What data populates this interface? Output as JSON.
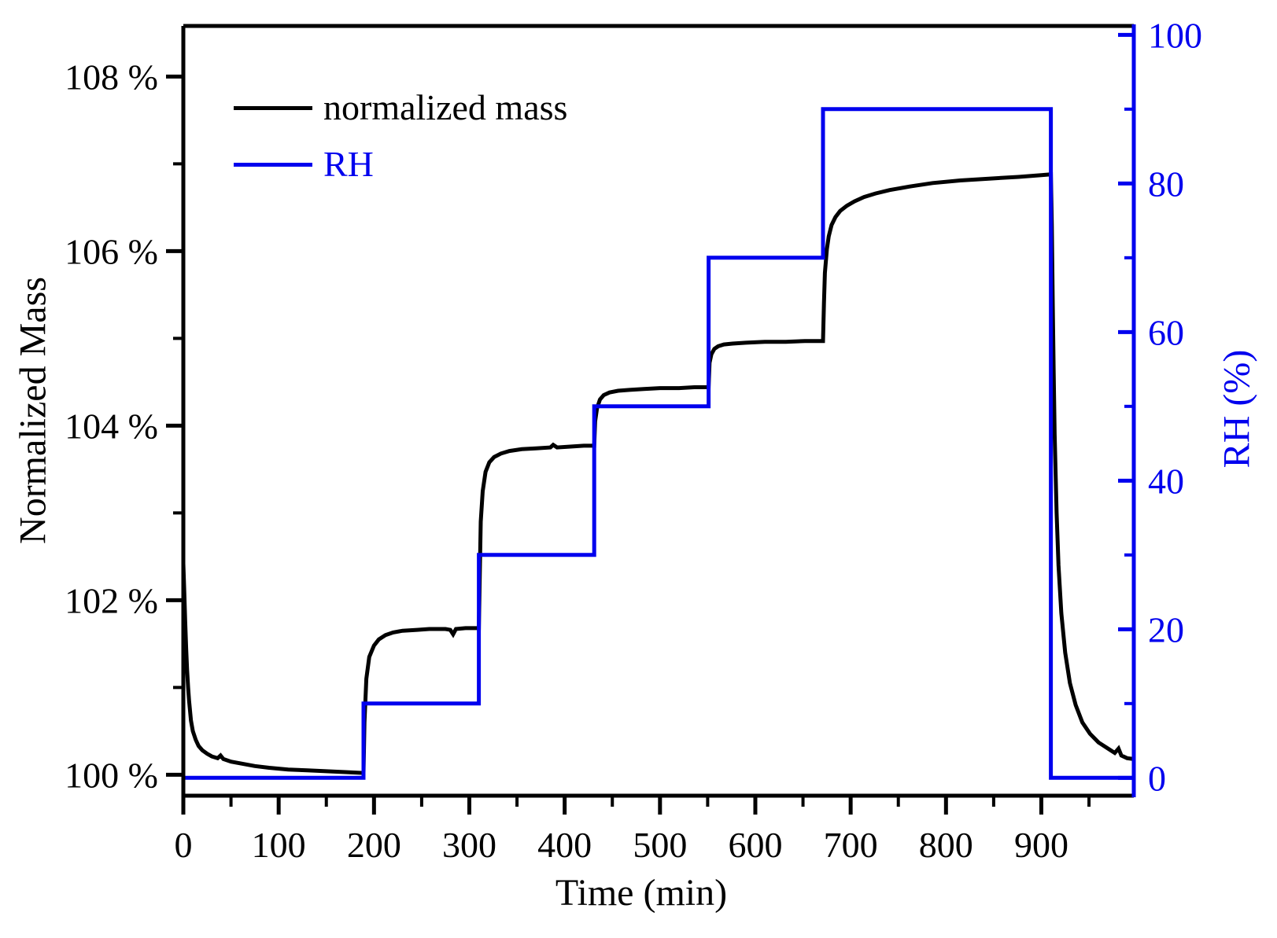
{
  "chart_data": {
    "type": "line",
    "title": "",
    "xlabel": "Time (min)",
    "ylabel_left": "Normalized Mass",
    "ylabel_right": "RH (%)",
    "colors": {
      "mass": "#000000",
      "rh": "#0000ee",
      "frame": "#000000"
    },
    "x_axis": {
      "min": 0,
      "max": 997,
      "major_ticks": [
        0,
        100,
        200,
        300,
        400,
        500,
        600,
        700,
        800,
        900
      ],
      "tick_labels": [
        "0",
        "100",
        "200",
        "300",
        "400",
        "500",
        "600",
        "700",
        "800",
        "900"
      ],
      "minor_ticks": [
        50,
        150,
        250,
        350,
        450,
        550,
        650,
        750,
        850,
        950
      ]
    },
    "y_left": {
      "min": 99.76,
      "max": 108.58,
      "major_ticks": [
        100,
        102,
        104,
        106,
        108
      ],
      "tick_labels": [
        "100 %",
        "102 %",
        "104 %",
        "106 %",
        "108 %"
      ],
      "minor_ticks": [
        101,
        103,
        105,
        107
      ]
    },
    "y_right": {
      "min": -2.4,
      "max": 101.2,
      "major_ticks": [
        0,
        20,
        40,
        60,
        80,
        100
      ],
      "tick_labels": [
        "0",
        "20",
        "40",
        "60",
        "80",
        "100"
      ],
      "minor_ticks": [
        10,
        30,
        50,
        70,
        90
      ]
    },
    "legend": [
      {
        "label": "normalized mass",
        "color": "#000000"
      },
      {
        "label": "RH",
        "color": "#0000ee"
      }
    ],
    "rh_program_steps": [
      {
        "start_min": 0,
        "end_min": 189,
        "rh_percent": 0
      },
      {
        "start_min": 189,
        "end_min": 310,
        "rh_percent": 10
      },
      {
        "start_min": 310,
        "end_min": 431,
        "rh_percent": 30
      },
      {
        "start_min": 431,
        "end_min": 551,
        "rh_percent": 50
      },
      {
        "start_min": 551,
        "end_min": 671,
        "rh_percent": 70
      },
      {
        "start_min": 671,
        "end_min": 910,
        "rh_percent": 90
      },
      {
        "start_min": 910,
        "end_min": 997,
        "rh_percent": 0
      }
    ],
    "mass_plateaus_percent": {
      "rh0": 100.0,
      "rh10": 101.68,
      "rh30": 103.77,
      "rh50": 104.44,
      "rh70": 104.97,
      "rh90": 106.88,
      "final": 100.18
    },
    "series": [
      {
        "name": "normalized mass",
        "axis": "left",
        "width": 5,
        "points": [
          [
            0,
            102.42
          ],
          [
            1,
            102.1
          ],
          [
            2,
            101.75
          ],
          [
            3,
            101.45
          ],
          [
            4,
            101.2
          ],
          [
            5,
            101.0
          ],
          [
            6,
            100.85
          ],
          [
            8,
            100.62
          ],
          [
            10,
            100.5
          ],
          [
            13,
            100.4
          ],
          [
            16,
            100.33
          ],
          [
            20,
            100.28
          ],
          [
            25,
            100.24
          ],
          [
            30,
            100.21
          ],
          [
            36,
            100.19
          ],
          [
            39,
            100.22
          ],
          [
            42,
            100.18
          ],
          [
            50,
            100.15
          ],
          [
            60,
            100.13
          ],
          [
            75,
            100.1
          ],
          [
            90,
            100.08
          ],
          [
            110,
            100.06
          ],
          [
            130,
            100.05
          ],
          [
            150,
            100.04
          ],
          [
            170,
            100.03
          ],
          [
            189,
            100.02
          ],
          [
            190,
            100.6
          ],
          [
            192,
            101.1
          ],
          [
            195,
            101.35
          ],
          [
            200,
            101.48
          ],
          [
            205,
            101.55
          ],
          [
            212,
            101.6
          ],
          [
            220,
            101.63
          ],
          [
            230,
            101.65
          ],
          [
            245,
            101.66
          ],
          [
            258,
            101.67
          ],
          [
            275,
            101.67
          ],
          [
            280,
            101.66
          ],
          [
            283,
            101.61
          ],
          [
            286,
            101.67
          ],
          [
            296,
            101.68
          ],
          [
            310,
            101.68
          ],
          [
            311,
            102.3
          ],
          [
            312,
            102.9
          ],
          [
            314,
            103.25
          ],
          [
            317,
            103.47
          ],
          [
            321,
            103.58
          ],
          [
            326,
            103.64
          ],
          [
            333,
            103.68
          ],
          [
            342,
            103.71
          ],
          [
            355,
            103.73
          ],
          [
            370,
            103.74
          ],
          [
            385,
            103.75
          ],
          [
            388,
            103.78
          ],
          [
            392,
            103.75
          ],
          [
            406,
            103.76
          ],
          [
            420,
            103.77
          ],
          [
            431,
            103.77
          ],
          [
            432,
            104.05
          ],
          [
            434,
            104.2
          ],
          [
            437,
            104.3
          ],
          [
            441,
            104.35
          ],
          [
            447,
            104.38
          ],
          [
            456,
            104.4
          ],
          [
            468,
            104.41
          ],
          [
            483,
            104.42
          ],
          [
            500,
            104.43
          ],
          [
            520,
            104.43
          ],
          [
            536,
            104.44
          ],
          [
            551,
            104.44
          ],
          [
            552,
            104.72
          ],
          [
            554,
            104.82
          ],
          [
            557,
            104.88
          ],
          [
            561,
            104.91
          ],
          [
            567,
            104.93
          ],
          [
            576,
            104.94
          ],
          [
            590,
            104.95
          ],
          [
            610,
            104.96
          ],
          [
            632,
            104.96
          ],
          [
            652,
            104.97
          ],
          [
            671,
            104.97
          ],
          [
            672,
            105.4
          ],
          [
            673,
            105.75
          ],
          [
            675,
            106.02
          ],
          [
            677,
            106.17
          ],
          [
            680,
            106.3
          ],
          [
            684,
            106.39
          ],
          [
            689,
            106.46
          ],
          [
            696,
            106.52
          ],
          [
            704,
            106.57
          ],
          [
            714,
            106.62
          ],
          [
            726,
            106.66
          ],
          [
            741,
            106.7
          ],
          [
            762,
            106.74
          ],
          [
            786,
            106.78
          ],
          [
            815,
            106.81
          ],
          [
            845,
            106.83
          ],
          [
            876,
            106.85
          ],
          [
            900,
            106.87
          ],
          [
            910,
            106.88
          ],
          [
            911,
            106.3
          ],
          [
            912,
            105.4
          ],
          [
            913,
            104.6
          ],
          [
            914,
            103.9
          ],
          [
            916,
            103.0
          ],
          [
            918,
            102.4
          ],
          [
            921,
            101.85
          ],
          [
            925,
            101.4
          ],
          [
            930,
            101.05
          ],
          [
            936,
            100.8
          ],
          [
            943,
            100.6
          ],
          [
            951,
            100.47
          ],
          [
            960,
            100.37
          ],
          [
            970,
            100.3
          ],
          [
            977,
            100.25
          ],
          [
            981,
            100.3
          ],
          [
            984,
            100.22
          ],
          [
            990,
            100.19
          ],
          [
            997,
            100.18
          ]
        ]
      },
      {
        "name": "RH",
        "axis": "right",
        "width": 5,
        "points": [
          [
            0,
            0
          ],
          [
            189,
            0
          ],
          [
            189,
            10
          ],
          [
            310,
            10
          ],
          [
            310,
            30
          ],
          [
            431,
            30
          ],
          [
            431,
            50
          ],
          [
            551,
            50
          ],
          [
            551,
            70
          ],
          [
            671,
            70
          ],
          [
            671,
            90
          ],
          [
            910,
            90
          ],
          [
            910,
            0
          ],
          [
            997,
            0
          ]
        ]
      }
    ]
  }
}
